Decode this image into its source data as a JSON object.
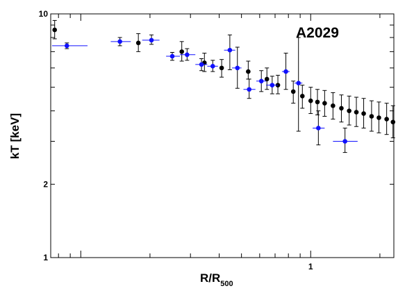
{
  "chart_data": {
    "type": "scatter",
    "annotation": "A2029",
    "xlabel": "R/R",
    "xlabel_sub": "500",
    "ylabel": "kT [keV]",
    "xscale": "log",
    "yscale": "log",
    "xlim": [
      0.074,
      2.3
    ],
    "ylim": [
      1,
      10
    ],
    "y_tick_labels": [
      {
        "value": 10,
        "label": "10"
      },
      {
        "value": 2,
        "label": "2"
      },
      {
        "value": 1,
        "label": "1"
      }
    ],
    "x_tick_labels": [
      {
        "value": 1,
        "label": "1"
      }
    ],
    "grid": false,
    "series": [
      {
        "color": "#000000",
        "points": [
          {
            "x": 0.077,
            "y": 8.6,
            "xlo": 0.076,
            "xhi": 0.078,
            "ylo": 7.9,
            "yhi": 9.4
          },
          {
            "x": 0.178,
            "y": 7.6,
            "xlo": 0.175,
            "xhi": 0.181,
            "ylo": 7.0,
            "yhi": 8.3
          },
          {
            "x": 0.275,
            "y": 7.0,
            "xlo": 0.272,
            "xhi": 0.278,
            "ylo": 6.4,
            "yhi": 7.7
          },
          {
            "x": 0.345,
            "y": 6.3,
            "xlo": 0.342,
            "xhi": 0.348,
            "ylo": 5.8,
            "yhi": 6.9
          },
          {
            "x": 0.41,
            "y": 6.0,
            "xlo": 0.406,
            "xhi": 0.414,
            "ylo": 5.5,
            "yhi": 6.5
          },
          {
            "x": 0.535,
            "y": 5.8,
            "xlo": 0.53,
            "xhi": 0.54,
            "ylo": 5.4,
            "yhi": 6.4
          },
          {
            "x": 0.645,
            "y": 5.4,
            "xlo": 0.64,
            "xhi": 0.65,
            "ylo": 4.9,
            "yhi": 6.0
          },
          {
            "x": 0.72,
            "y": 5.1,
            "xlo": 0.715,
            "xhi": 0.725,
            "ylo": 4.7,
            "yhi": 5.6
          },
          {
            "x": 0.84,
            "y": 4.8,
            "xlo": 0.835,
            "xhi": 0.845,
            "ylo": 4.3,
            "yhi": 5.3
          },
          {
            "x": 0.92,
            "y": 4.6,
            "xlo": 0.915,
            "xhi": 0.925,
            "ylo": 4.1,
            "yhi": 5.1
          },
          {
            "x": 1.0,
            "y": 4.4,
            "xlo": 0.995,
            "xhi": 1.005,
            "ylo": 3.9,
            "yhi": 5.0
          },
          {
            "x": 1.07,
            "y": 4.35,
            "xlo": 1.06,
            "xhi": 1.08,
            "ylo": 3.85,
            "yhi": 4.9
          },
          {
            "x": 1.15,
            "y": 4.3,
            "xlo": 1.14,
            "xhi": 1.16,
            "ylo": 3.8,
            "yhi": 4.85
          },
          {
            "x": 1.25,
            "y": 4.2,
            "xlo": 1.24,
            "xhi": 1.26,
            "ylo": 3.7,
            "yhi": 4.75
          },
          {
            "x": 1.36,
            "y": 4.1,
            "xlo": 1.35,
            "xhi": 1.37,
            "ylo": 3.6,
            "yhi": 4.65
          },
          {
            "x": 1.47,
            "y": 4.0,
            "xlo": 1.46,
            "xhi": 1.48,
            "ylo": 3.5,
            "yhi": 4.6
          },
          {
            "x": 1.58,
            "y": 3.95,
            "xlo": 1.57,
            "xhi": 1.59,
            "ylo": 3.45,
            "yhi": 4.55
          },
          {
            "x": 1.7,
            "y": 3.9,
            "xlo": 1.69,
            "xhi": 1.71,
            "ylo": 3.4,
            "yhi": 4.5
          },
          {
            "x": 1.84,
            "y": 3.8,
            "xlo": 1.83,
            "xhi": 1.85,
            "ylo": 3.3,
            "yhi": 4.4
          },
          {
            "x": 1.98,
            "y": 3.75,
            "xlo": 1.97,
            "xhi": 1.99,
            "ylo": 3.25,
            "yhi": 4.35
          },
          {
            "x": 2.14,
            "y": 3.7,
            "xlo": 2.12,
            "xhi": 2.16,
            "ylo": 3.2,
            "yhi": 4.3
          },
          {
            "x": 2.28,
            "y": 3.6,
            "xlo": 2.26,
            "xhi": 2.3,
            "ylo": 3.1,
            "yhi": 4.2
          }
        ]
      },
      {
        "color": "#1010ff",
        "points": [
          {
            "x": 0.087,
            "y": 7.4,
            "xlo": 0.075,
            "xhi": 0.107,
            "ylo": 7.2,
            "yhi": 7.6
          },
          {
            "x": 0.148,
            "y": 7.7,
            "xlo": 0.135,
            "xhi": 0.165,
            "ylo": 7.4,
            "yhi": 8.0
          },
          {
            "x": 0.203,
            "y": 7.8,
            "xlo": 0.185,
            "xhi": 0.22,
            "ylo": 7.5,
            "yhi": 8.2
          },
          {
            "x": 0.25,
            "y": 6.7,
            "xlo": 0.235,
            "xhi": 0.27,
            "ylo": 6.45,
            "yhi": 6.95
          },
          {
            "x": 0.29,
            "y": 6.8,
            "xlo": 0.27,
            "xhi": 0.315,
            "ylo": 6.45,
            "yhi": 7.2
          },
          {
            "x": 0.335,
            "y": 6.2,
            "xlo": 0.315,
            "xhi": 0.355,
            "ylo": 5.85,
            "yhi": 6.55
          },
          {
            "x": 0.375,
            "y": 6.1,
            "xlo": 0.355,
            "xhi": 0.395,
            "ylo": 5.8,
            "yhi": 6.45
          },
          {
            "x": 0.445,
            "y": 7.1,
            "xlo": 0.42,
            "xhi": 0.47,
            "ylo": 5.9,
            "yhi": 8.2
          },
          {
            "x": 0.48,
            "y": 6.0,
            "xlo": 0.455,
            "xhi": 0.5,
            "ylo": 4.95,
            "yhi": 7.3
          },
          {
            "x": 0.54,
            "y": 4.9,
            "xlo": 0.51,
            "xhi": 0.575,
            "ylo": 4.5,
            "yhi": 5.4
          },
          {
            "x": 0.61,
            "y": 5.3,
            "xlo": 0.58,
            "xhi": 0.64,
            "ylo": 4.8,
            "yhi": 5.85
          },
          {
            "x": 0.68,
            "y": 5.1,
            "xlo": 0.64,
            "xhi": 0.72,
            "ylo": 4.7,
            "yhi": 5.55
          },
          {
            "x": 0.78,
            "y": 5.8,
            "xlo": 0.75,
            "xhi": 0.81,
            "ylo": 4.9,
            "yhi": 6.9
          },
          {
            "x": 0.885,
            "y": 5.2,
            "xlo": 0.85,
            "xhi": 0.92,
            "ylo": 3.3,
            "yhi": 8.0
          },
          {
            "x": 1.08,
            "y": 3.4,
            "xlo": 1.02,
            "xhi": 1.15,
            "ylo": 2.9,
            "yhi": 4.0
          },
          {
            "x": 1.41,
            "y": 3.0,
            "xlo": 1.25,
            "xhi": 1.6,
            "ylo": 2.7,
            "yhi": 3.4
          }
        ]
      }
    ]
  }
}
